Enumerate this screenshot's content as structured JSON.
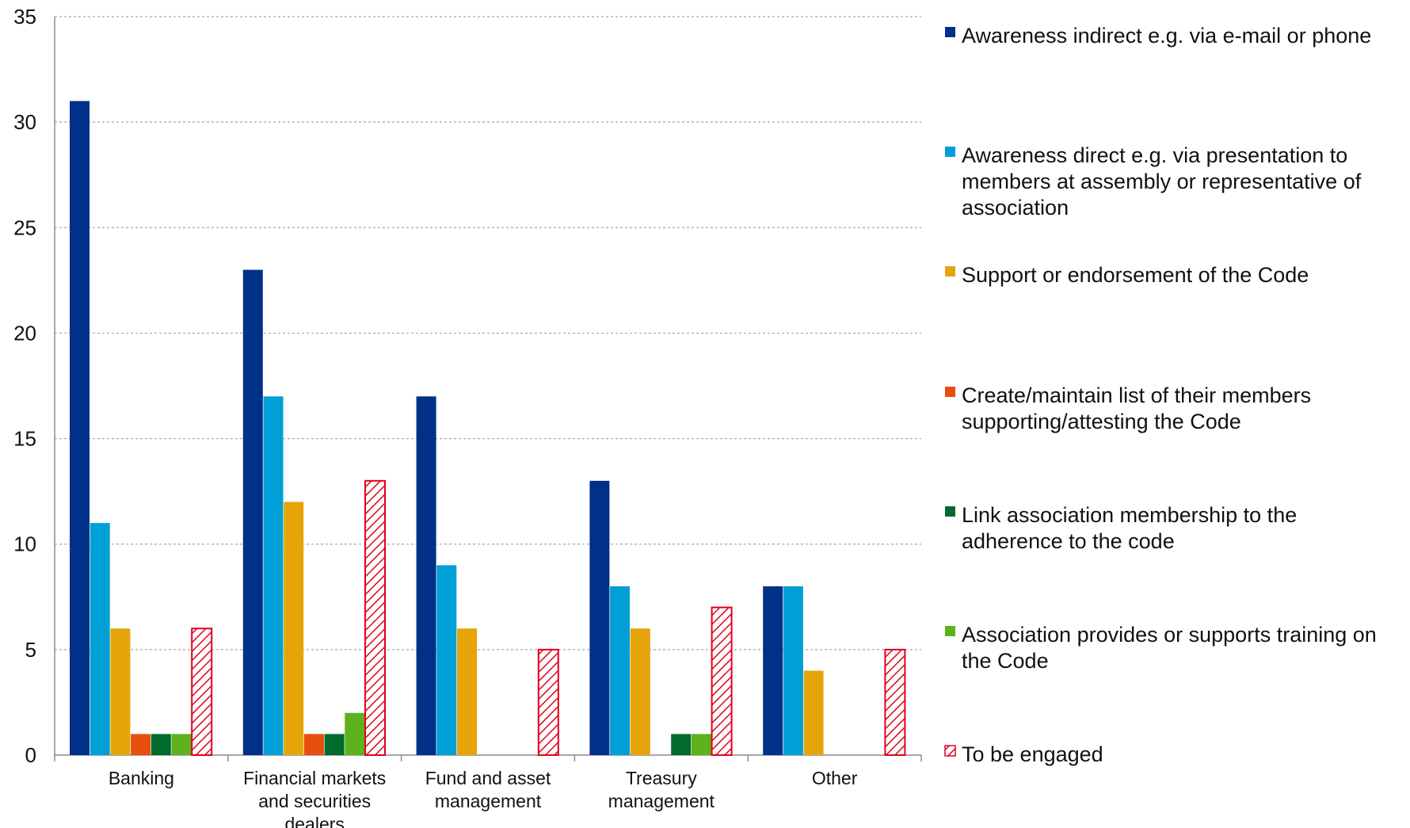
{
  "chart_data": {
    "type": "bar",
    "ylim": [
      0,
      35
    ],
    "yticks": [
      0,
      5,
      10,
      15,
      20,
      25,
      30,
      35
    ],
    "grid": true,
    "legend_position": "right",
    "categories": [
      [
        "Banking"
      ],
      [
        "Financial markets",
        "and securities",
        "dealers"
      ],
      [
        "Fund and asset",
        "management"
      ],
      [
        "Treasury",
        "management"
      ],
      [
        "Other"
      ]
    ],
    "series": [
      {
        "name": [
          "Awareness indirect e.g.  via e-mail or phone"
        ],
        "color": "#003087",
        "hatch": false,
        "values": [
          31,
          23,
          17,
          13,
          8
        ]
      },
      {
        "name": [
          "Awareness direct e.g. via presentation to",
          "members at assembly or representative of",
          "association"
        ],
        "color": "#00A0D6",
        "hatch": false,
        "values": [
          11,
          17,
          9,
          8,
          8
        ]
      },
      {
        "name": [
          "Support or endorsement of the Code"
        ],
        "color": "#E5A50A",
        "hatch": false,
        "values": [
          6,
          12,
          6,
          6,
          4
        ]
      },
      {
        "name": [
          "Create/maintain list of their members",
          "supporting/attesting the Code"
        ],
        "color": "#E84E0F",
        "hatch": false,
        "values": [
          1,
          1,
          0,
          0,
          0
        ]
      },
      {
        "name": [
          "Link association membership to the",
          "adherence to the code"
        ],
        "color": "#006B2B",
        "hatch": false,
        "values": [
          1,
          1,
          0,
          1,
          0
        ]
      },
      {
        "name": [
          "Association provides or supports training on",
          "the Code"
        ],
        "color": "#5DB21D",
        "hatch": false,
        "values": [
          1,
          2,
          0,
          1,
          0
        ]
      },
      {
        "name": [
          "To be engaged"
        ],
        "color": "#E3001B",
        "hatch": true,
        "values": [
          6,
          13,
          5,
          7,
          5
        ]
      }
    ]
  }
}
